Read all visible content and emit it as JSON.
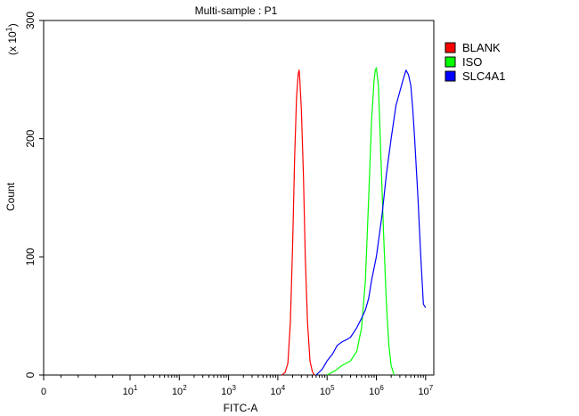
{
  "chart_data": {
    "type": "line",
    "title": "Multi-sample : P1",
    "xlabel": "FITC-A",
    "ylabel": "Count",
    "y_multiplier": "(x 10",
    "y_multiplier_exp": "1",
    "y_multiplier_close": ")",
    "x_scale": "biexponential (log with linear region near 0)",
    "xlim": [
      0,
      10000000
    ],
    "ylim": [
      0,
      300
    ],
    "x_ticks": [
      {
        "value": 0,
        "label": "0",
        "exp": ""
      },
      {
        "value": 10,
        "label": "10",
        "exp": "1"
      },
      {
        "value": 100,
        "label": "10",
        "exp": "2"
      },
      {
        "value": 1000,
        "label": "10",
        "exp": "3"
      },
      {
        "value": 10000,
        "label": "10",
        "exp": "4"
      },
      {
        "value": 100000,
        "label": "10",
        "exp": "5"
      },
      {
        "value": 1000000,
        "label": "10",
        "exp": "6"
      },
      {
        "value": 10000000,
        "label": "10",
        "exp": "7"
      }
    ],
    "y_ticks": [
      0,
      100,
      200,
      300
    ],
    "grid": false,
    "legend_position": "right",
    "series": [
      {
        "name": "BLANK",
        "color": "#ff0000",
        "points": [
          [
            12000,
            0
          ],
          [
            14000,
            2
          ],
          [
            16000,
            10
          ],
          [
            18000,
            45
          ],
          [
            20000,
            110
          ],
          [
            22000,
            185
          ],
          [
            24000,
            235
          ],
          [
            26000,
            255
          ],
          [
            27000,
            258
          ],
          [
            28000,
            250
          ],
          [
            30000,
            225
          ],
          [
            33000,
            170
          ],
          [
            36000,
            100
          ],
          [
            40000,
            45
          ],
          [
            45000,
            12
          ],
          [
            50000,
            3
          ],
          [
            55000,
            0
          ]
        ]
      },
      {
        "name": "ISO",
        "color": "#00ff00",
        "points": [
          [
            100000,
            0
          ],
          [
            150000,
            4
          ],
          [
            200000,
            8
          ],
          [
            300000,
            12
          ],
          [
            400000,
            20
          ],
          [
            500000,
            40
          ],
          [
            600000,
            80
          ],
          [
            700000,
            150
          ],
          [
            800000,
            215
          ],
          [
            900000,
            250
          ],
          [
            950000,
            258
          ],
          [
            1000000,
            260
          ],
          [
            1100000,
            245
          ],
          [
            1200000,
            200
          ],
          [
            1400000,
            120
          ],
          [
            1600000,
            60
          ],
          [
            1800000,
            25
          ],
          [
            2000000,
            8
          ],
          [
            2300000,
            0
          ]
        ]
      },
      {
        "name": "SLC4A1",
        "color": "#0000ff",
        "points": [
          [
            60000,
            0
          ],
          [
            80000,
            5
          ],
          [
            100000,
            12
          ],
          [
            130000,
            18
          ],
          [
            160000,
            25
          ],
          [
            200000,
            28
          ],
          [
            250000,
            30
          ],
          [
            300000,
            32
          ],
          [
            400000,
            40
          ],
          [
            500000,
            48
          ],
          [
            600000,
            55
          ],
          [
            700000,
            65
          ],
          [
            800000,
            80
          ],
          [
            1000000,
            100
          ],
          [
            1300000,
            135
          ],
          [
            1600000,
            170
          ],
          [
            2000000,
            200
          ],
          [
            2500000,
            228
          ],
          [
            3000000,
            240
          ],
          [
            3500000,
            250
          ],
          [
            4000000,
            258
          ],
          [
            4500000,
            254
          ],
          [
            5000000,
            245
          ],
          [
            5500000,
            225
          ],
          [
            6000000,
            200
          ],
          [
            7000000,
            150
          ],
          [
            8000000,
            100
          ],
          [
            9000000,
            60
          ],
          [
            10000000,
            57
          ]
        ]
      }
    ]
  }
}
